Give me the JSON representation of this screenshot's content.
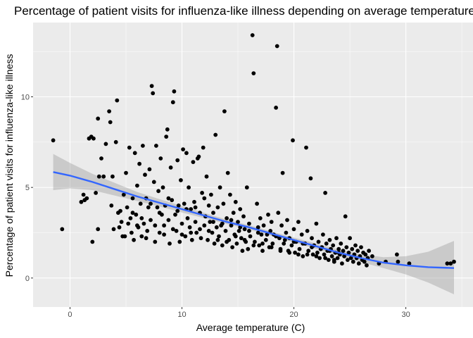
{
  "colors": {
    "panel": "#EBEBEB",
    "grid_major": "#FFFFFF",
    "points": "#000000",
    "trend": "#3366FF",
    "ribbon": "#999999",
    "tick_text": "#4D4D4D",
    "tick_mark": "#333333"
  },
  "chart_data": {
    "type": "scatter",
    "title": "Percentage of patient visits for influenza-like illness depending on average temperature",
    "xlabel": "Average temperature (C)",
    "ylabel": "Percentage of patient visits for influenza-like illness",
    "xlim": [
      -3.3,
      36.0
    ],
    "ylim": [
      -1.6,
      14.1
    ],
    "xticks": [
      0,
      10,
      20,
      30
    ],
    "yticks": [
      0,
      5,
      10
    ],
    "grid": true,
    "legend": "none",
    "points": [
      [
        -1.5,
        7.6
      ],
      [
        -0.7,
        2.7
      ],
      [
        1.0,
        4.2
      ],
      [
        1.2,
        4.6
      ],
      [
        1.3,
        4.3
      ],
      [
        1.5,
        4.4
      ],
      [
        1.7,
        7.7
      ],
      [
        1.9,
        7.8
      ],
      [
        2.0,
        2.0
      ],
      [
        2.1,
        7.7
      ],
      [
        2.3,
        4.7
      ],
      [
        2.5,
        8.8
      ],
      [
        2.5,
        2.7
      ],
      [
        2.6,
        5.6
      ],
      [
        2.8,
        6.6
      ],
      [
        3.0,
        5.6
      ],
      [
        3.2,
        7.4
      ],
      [
        3.5,
        9.2
      ],
      [
        3.6,
        8.6
      ],
      [
        3.7,
        4.0
      ],
      [
        3.8,
        5.6
      ],
      [
        4.1,
        7.5
      ],
      [
        4.2,
        9.8
      ],
      [
        4.3,
        3.6
      ],
      [
        4.4,
        2.8
      ],
      [
        4.5,
        3.7
      ],
      [
        4.6,
        3.1
      ],
      [
        4.7,
        2.3
      ],
      [
        4.8,
        4.6
      ],
      [
        5.0,
        5.8
      ],
      [
        5.1,
        3.9
      ],
      [
        5.3,
        7.2
      ],
      [
        5.4,
        3.3
      ],
      [
        5.5,
        2.5
      ],
      [
        5.6,
        4.4
      ],
      [
        5.7,
        2.1
      ],
      [
        5.8,
        6.9
      ],
      [
        5.9,
        3.5
      ],
      [
        6.0,
        5.1
      ],
      [
        6.1,
        2.8
      ],
      [
        6.2,
        6.3
      ],
      [
        6.3,
        4.1
      ],
      [
        6.4,
        2.3
      ],
      [
        6.5,
        7.3
      ],
      [
        6.6,
        3.0
      ],
      [
        6.7,
        5.7
      ],
      [
        6.8,
        4.4
      ],
      [
        6.9,
        2.6
      ],
      [
        7.0,
        3.9
      ],
      [
        7.1,
        6.0
      ],
      [
        7.2,
        3.2
      ],
      [
        7.3,
        10.6
      ],
      [
        7.4,
        10.2
      ],
      [
        7.5,
        5.3
      ],
      [
        7.6,
        2.0
      ],
      [
        7.7,
        7.3
      ],
      [
        7.8,
        3.9
      ],
      [
        7.9,
        4.8
      ],
      [
        8.0,
        2.5
      ],
      [
        8.1,
        6.6
      ],
      [
        8.2,
        3.5
      ],
      [
        8.3,
        5.0
      ],
      [
        8.4,
        2.9
      ],
      [
        8.5,
        4.0
      ],
      [
        8.6,
        7.8
      ],
      [
        8.7,
        8.2
      ],
      [
        8.8,
        3.2
      ],
      [
        8.9,
        1.9
      ],
      [
        9.0,
        6.1
      ],
      [
        9.1,
        4.3
      ],
      [
        9.2,
        9.7
      ],
      [
        9.3,
        10.3
      ],
      [
        9.4,
        3.5
      ],
      [
        9.5,
        2.6
      ],
      [
        9.6,
        6.5
      ],
      [
        9.7,
        4.0
      ],
      [
        9.8,
        2.0
      ],
      [
        9.9,
        5.4
      ],
      [
        10.0,
        3.0
      ],
      [
        10.1,
        7.1
      ],
      [
        10.2,
        4.1
      ],
      [
        10.3,
        2.3
      ],
      [
        10.4,
        6.9
      ],
      [
        10.5,
        3.3
      ],
      [
        10.6,
        5.0
      ],
      [
        10.7,
        2.8
      ],
      [
        10.8,
        3.8
      ],
      [
        10.9,
        2.1
      ],
      [
        11.0,
        6.4
      ],
      [
        11.1,
        4.2
      ],
      [
        11.2,
        3.1
      ],
      [
        11.3,
        2.5
      ],
      [
        11.4,
        6.6
      ],
      [
        11.5,
        6.7
      ],
      [
        11.6,
        3.6
      ],
      [
        11.7,
        2.2
      ],
      [
        11.8,
        4.7
      ],
      [
        11.9,
        7.2
      ],
      [
        12.0,
        2.9
      ],
      [
        12.1,
        3.4
      ],
      [
        12.2,
        5.6
      ],
      [
        12.3,
        2.1
      ],
      [
        12.4,
        4.0
      ],
      [
        12.5,
        3.1
      ],
      [
        12.6,
        4.6
      ],
      [
        12.7,
        2.5
      ],
      [
        12.8,
        3.6
      ],
      [
        12.9,
        1.9
      ],
      [
        13.0,
        7.9
      ],
      [
        13.1,
        2.8
      ],
      [
        13.2,
        3.9
      ],
      [
        13.3,
        2.3
      ],
      [
        13.4,
        5.0
      ],
      [
        13.5,
        2.9
      ],
      [
        13.6,
        1.8
      ],
      [
        13.7,
        4.1
      ],
      [
        13.8,
        9.2
      ],
      [
        13.9,
        2.6
      ],
      [
        14.0,
        3.3
      ],
      [
        14.1,
        5.8
      ],
      [
        14.2,
        2.1
      ],
      [
        14.3,
        4.6
      ],
      [
        14.4,
        2.9
      ],
      [
        14.5,
        1.7
      ],
      [
        14.6,
        3.6
      ],
      [
        14.7,
        2.4
      ],
      [
        14.8,
        4.2
      ],
      [
        14.9,
        1.9
      ],
      [
        15.0,
        3.1
      ],
      [
        15.1,
        2.6
      ],
      [
        15.2,
        3.8
      ],
      [
        15.3,
        2.2
      ],
      [
        15.4,
        1.5
      ],
      [
        15.5,
        3.4
      ],
      [
        15.6,
        2.7
      ],
      [
        15.7,
        2.0
      ],
      [
        15.8,
        5.0
      ],
      [
        15.9,
        1.6
      ],
      [
        16.0,
        3.0
      ],
      [
        16.1,
        2.3
      ],
      [
        16.3,
        13.4
      ],
      [
        16.4,
        11.3
      ],
      [
        16.5,
        2.0
      ],
      [
        16.7,
        4.1
      ],
      [
        16.8,
        2.8
      ],
      [
        16.9,
        1.8
      ],
      [
        17.0,
        3.3
      ],
      [
        17.1,
        2.4
      ],
      [
        17.2,
        1.5
      ],
      [
        17.3,
        2.9
      ],
      [
        17.5,
        2.1
      ],
      [
        17.7,
        3.5
      ],
      [
        17.8,
        1.7
      ],
      [
        17.9,
        2.6
      ],
      [
        18.0,
        3.1
      ],
      [
        18.1,
        1.9
      ],
      [
        18.2,
        2.4
      ],
      [
        18.4,
        9.4
      ],
      [
        18.5,
        12.8
      ],
      [
        18.6,
        3.6
      ],
      [
        18.7,
        2.2
      ],
      [
        18.8,
        1.6
      ],
      [
        18.9,
        2.9
      ],
      [
        19.0,
        5.8
      ],
      [
        19.1,
        1.9
      ],
      [
        19.3,
        2.5
      ],
      [
        19.4,
        3.2
      ],
      [
        19.5,
        1.5
      ],
      [
        19.6,
        2.2
      ],
      [
        19.8,
        1.8
      ],
      [
        19.9,
        7.6
      ],
      [
        20.0,
        2.7
      ],
      [
        20.1,
        1.4
      ],
      [
        20.2,
        2.0
      ],
      [
        20.4,
        3.1
      ],
      [
        20.5,
        1.6
      ],
      [
        20.7,
        2.4
      ],
      [
        20.8,
        1.2
      ],
      [
        21.0,
        1.9
      ],
      [
        21.1,
        7.2
      ],
      [
        21.2,
        2.6
      ],
      [
        21.3,
        1.5
      ],
      [
        21.5,
        5.5
      ],
      [
        21.6,
        2.2
      ],
      [
        21.7,
        1.3
      ],
      [
        21.8,
        1.8
      ],
      [
        22.0,
        3.0
      ],
      [
        22.1,
        1.4
      ],
      [
        22.2,
        2.0
      ],
      [
        22.3,
        1.1
      ],
      [
        22.5,
        1.7
      ],
      [
        22.6,
        2.4
      ],
      [
        22.7,
        1.3
      ],
      [
        22.8,
        4.7
      ],
      [
        22.9,
        1.9
      ],
      [
        23.0,
        1.5
      ],
      [
        23.1,
        1.0
      ],
      [
        23.2,
        2.1
      ],
      [
        23.3,
        1.6
      ],
      [
        23.4,
        1.2
      ],
      [
        23.5,
        1.8
      ],
      [
        23.6,
        0.9
      ],
      [
        23.7,
        1.4
      ],
      [
        23.8,
        2.2
      ],
      [
        23.9,
        1.1
      ],
      [
        24.0,
        1.6
      ],
      [
        24.1,
        1.3
      ],
      [
        24.2,
        1.9
      ],
      [
        24.3,
        0.8
      ],
      [
        24.4,
        1.5
      ],
      [
        24.5,
        1.2
      ],
      [
        24.6,
        3.4
      ],
      [
        24.7,
        1.7
      ],
      [
        24.8,
        1.0
      ],
      [
        24.9,
        1.4
      ],
      [
        25.0,
        2.2
      ],
      [
        25.1,
        1.1
      ],
      [
        25.2,
        1.6
      ],
      [
        25.3,
        0.9
      ],
      [
        25.4,
        1.3
      ],
      [
        25.5,
        1.8
      ],
      [
        25.6,
        1.1
      ],
      [
        25.7,
        1.5
      ],
      [
        25.8,
        0.8
      ],
      [
        25.9,
        1.2
      ],
      [
        26.0,
        1.7
      ],
      [
        26.1,
        1.0
      ],
      [
        26.2,
        1.4
      ],
      [
        26.3,
        0.9
      ],
      [
        26.4,
        1.3
      ],
      [
        26.5,
        0.7
      ],
      [
        26.6,
        1.1
      ],
      [
        26.7,
        1.5
      ],
      [
        27.0,
        1.2
      ],
      [
        27.6,
        0.8
      ],
      [
        28.2,
        0.9
      ],
      [
        29.2,
        1.3
      ],
      [
        29.3,
        0.9
      ],
      [
        30.3,
        0.8
      ],
      [
        33.7,
        0.8
      ],
      [
        34.0,
        0.8
      ],
      [
        34.3,
        0.9
      ],
      [
        3.9,
        2.7
      ],
      [
        4.9,
        2.3
      ],
      [
        5.2,
        3.0
      ],
      [
        5.6,
        3.6
      ],
      [
        6.0,
        2.9
      ],
      [
        6.4,
        3.3
      ],
      [
        6.8,
        2.2
      ],
      [
        7.2,
        4.1
      ],
      [
        7.6,
        2.9
      ],
      [
        8.0,
        3.6
      ],
      [
        8.4,
        2.4
      ],
      [
        8.8,
        4.4
      ],
      [
        9.2,
        2.7
      ],
      [
        9.6,
        3.7
      ],
      [
        10.0,
        2.4
      ],
      [
        10.4,
        3.8
      ],
      [
        10.8,
        2.5
      ],
      [
        11.2,
        3.9
      ],
      [
        11.6,
        2.7
      ],
      [
        12.0,
        4.4
      ],
      [
        12.4,
        2.6
      ],
      [
        12.8,
        3.1
      ],
      [
        13.2,
        2.1
      ],
      [
        13.6,
        3.0
      ],
      [
        14.0,
        2.0
      ],
      [
        14.4,
        3.2
      ],
      [
        14.8,
        2.3
      ],
      [
        15.2,
        2.8
      ],
      [
        15.6,
        2.1
      ],
      [
        16.0,
        2.6
      ],
      [
        16.4,
        1.8
      ],
      [
        16.8,
        2.5
      ],
      [
        17.2,
        1.9
      ],
      [
        17.6,
        2.4
      ],
      [
        18.0,
        1.7
      ],
      [
        18.4,
        2.3
      ],
      [
        18.8,
        1.5
      ],
      [
        19.2,
        2.1
      ],
      [
        19.6,
        1.4
      ],
      [
        20.0,
        2.0
      ],
      [
        20.4,
        1.3
      ],
      [
        20.8,
        1.9
      ],
      [
        21.2,
        1.3
      ],
      [
        21.6,
        1.7
      ],
      [
        22.0,
        1.2
      ],
      [
        22.4,
        1.6
      ],
      [
        22.8,
        1.1
      ],
      [
        23.2,
        1.5
      ],
      [
        23.6,
        1.0
      ],
      [
        24.0,
        1.4
      ]
    ],
    "trend": {
      "x": [
        -1.5,
        0,
        2,
        4,
        6,
        8,
        10,
        12,
        14,
        16,
        18,
        20,
        22,
        24,
        26,
        28,
        30,
        32,
        34.3
      ],
      "y": [
        5.85,
        5.65,
        5.3,
        4.9,
        4.5,
        4.15,
        3.8,
        3.45,
        3.1,
        2.8,
        2.45,
        2.1,
        1.75,
        1.4,
        1.1,
        0.85,
        0.7,
        0.6,
        0.55
      ],
      "lower": [
        4.85,
        4.95,
        4.85,
        4.55,
        4.25,
        3.95,
        3.62,
        3.3,
        2.98,
        2.68,
        2.33,
        1.97,
        1.6,
        1.22,
        0.88,
        0.55,
        0.2,
        -0.25,
        -0.9
      ],
      "upper": [
        6.85,
        6.35,
        5.75,
        5.25,
        4.75,
        4.35,
        3.98,
        3.6,
        3.22,
        2.92,
        2.57,
        2.23,
        1.9,
        1.58,
        1.32,
        1.15,
        1.2,
        1.45,
        2.05
      ]
    }
  }
}
